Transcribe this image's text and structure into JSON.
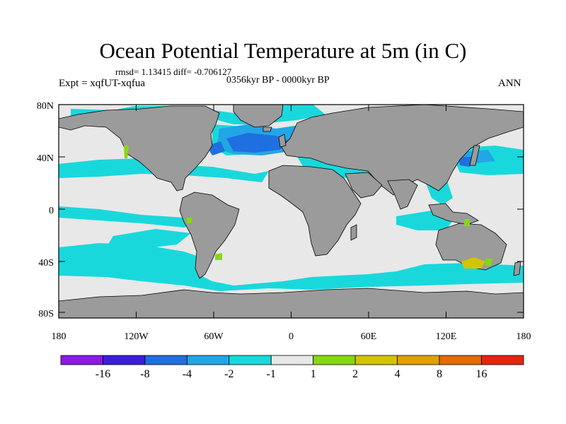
{
  "title": "Ocean Potential Temperature at 5m (in C)",
  "stats_line": "rmsd= 1.13415  diff= -0.706127",
  "experiment": "Expt = xqfUT-xqfua",
  "period": "0356kyr BP - 0000kyr BP",
  "season": "ANN",
  "axes": {
    "lat_ticks": [
      "80N",
      "40N",
      "0",
      "40S",
      "80S"
    ],
    "lon_ticks": [
      "180",
      "120W",
      "60W",
      "0",
      "60E",
      "120E",
      "180"
    ]
  },
  "colorbar": {
    "labels": [
      "-16",
      "-8",
      "-4",
      "-2",
      "-1",
      "1",
      "2",
      "4",
      "8",
      "16"
    ],
    "colors": [
      "#8a1be0",
      "#3a1fd8",
      "#1f6fe0",
      "#22a6e6",
      "#19d8dc",
      "#e8e8e8",
      "#86d813",
      "#d3c400",
      "#e3a100",
      "#e66a00",
      "#e5250d"
    ]
  },
  "map_colors": {
    "land": "#9b9b9b",
    "ocean_neutral": "#e8e8e8",
    "cyan": "#19d8dc",
    "lightblue": "#22a6e6",
    "blue": "#1f6fe0",
    "green": "#86d813",
    "yellow": "#d3c400"
  }
}
